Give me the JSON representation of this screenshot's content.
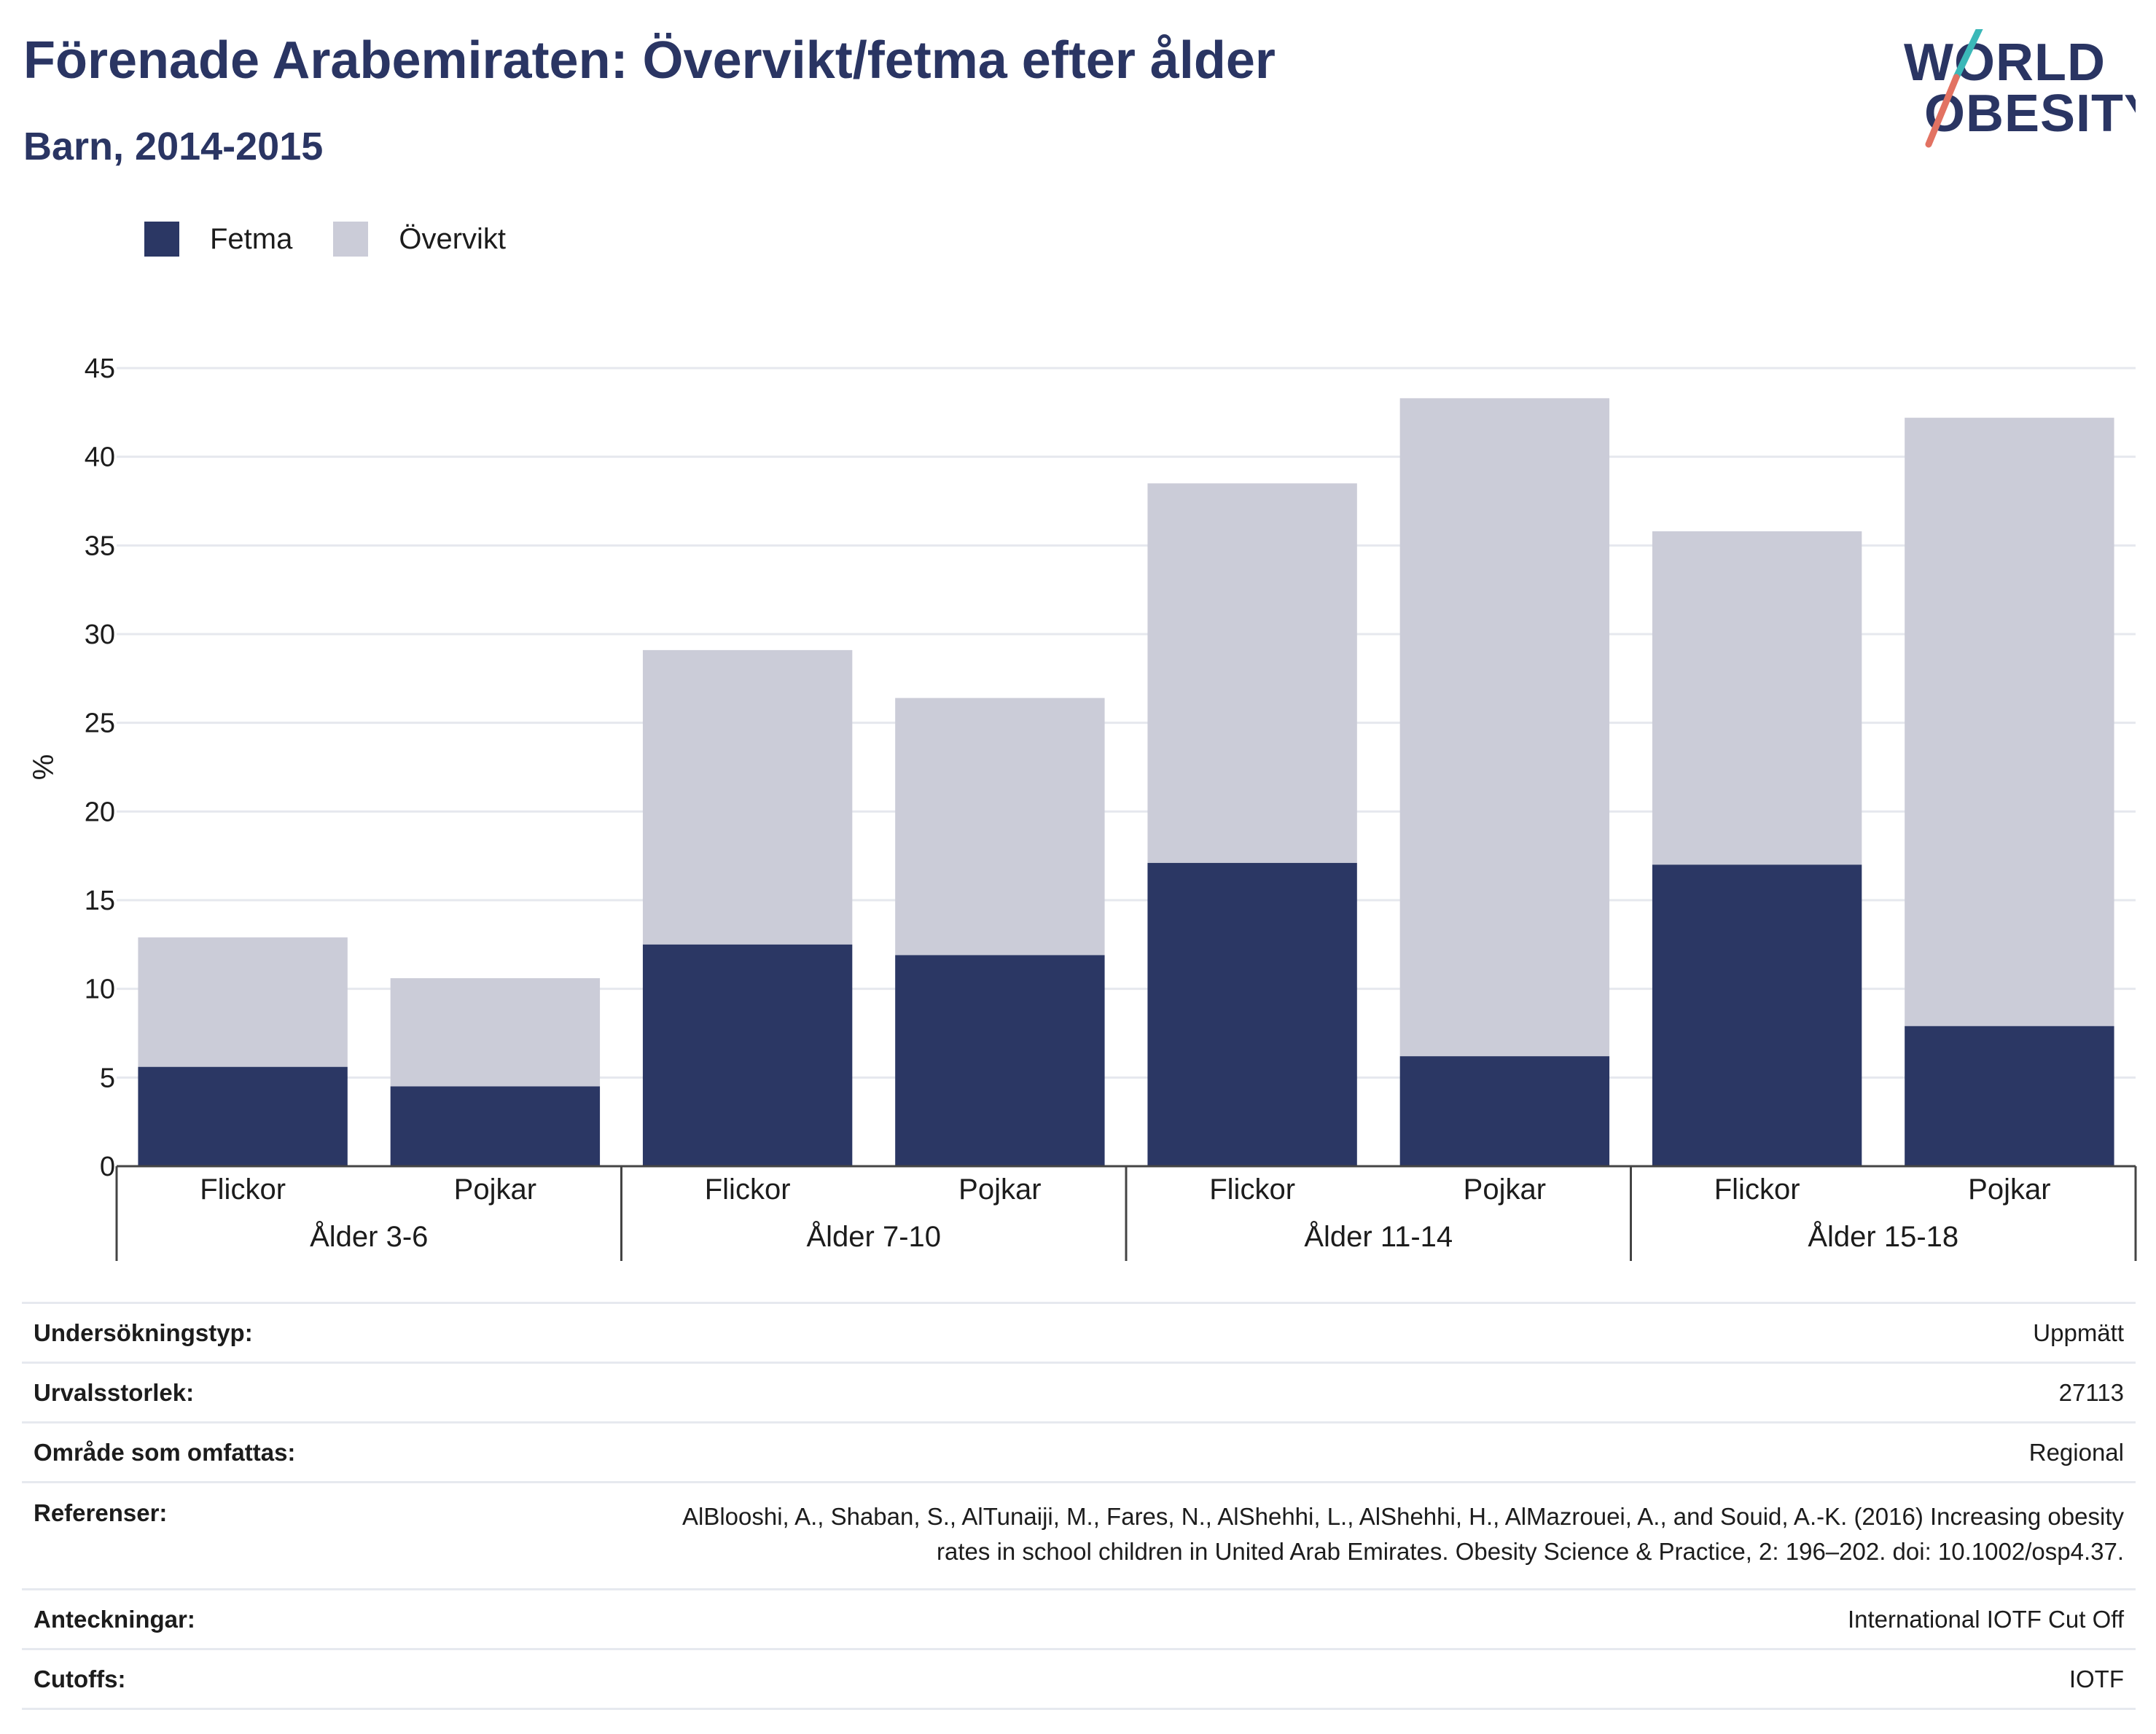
{
  "header": {
    "title": "Förenade Arabemiraten: Övervikt/fetma efter ålder",
    "subtitle": "Barn, 2014-2015"
  },
  "logo": {
    "line1": "WORLD",
    "line2": "OBESITY",
    "icon": "world-obesity-logo"
  },
  "colors": {
    "fetma": "#2b3764",
    "overvikt": "#cbccd8",
    "grid": "#e6e8ee",
    "axis": "#444444",
    "text": "#1c1c1c",
    "brand": "#2a3563"
  },
  "legend": [
    {
      "label": "Fetma",
      "color": "#2b3764"
    },
    {
      "label": "Övervikt",
      "color": "#cbccd8"
    }
  ],
  "chart_data": {
    "type": "bar",
    "stacked": true,
    "ylabel": "%",
    "ylim": [
      0,
      45
    ],
    "yticks": [
      0,
      5,
      10,
      15,
      20,
      25,
      30,
      35,
      40,
      45
    ],
    "grid": true,
    "legend_position": "top-left",
    "groups": [
      "Ålder 3-6",
      "Ålder 7-10",
      "Ålder 11-14",
      "Ålder 15-18"
    ],
    "categories": [
      "Flickor",
      "Pojkar",
      "Flickor",
      "Pojkar",
      "Flickor",
      "Pojkar",
      "Flickor",
      "Pojkar"
    ],
    "series": [
      {
        "name": "Fetma",
        "values": [
          5.6,
          4.5,
          12.5,
          11.9,
          17.1,
          6.2,
          17.0,
          7.9
        ]
      },
      {
        "name": "Övervikt",
        "values": [
          7.3,
          6.1,
          16.6,
          14.5,
          21.4,
          37.1,
          18.8,
          34.3
        ]
      }
    ]
  },
  "info": [
    {
      "label": "Undersökningstyp:",
      "value": "Uppmätt"
    },
    {
      "label": "Urvalsstorlek:",
      "value": "27113"
    },
    {
      "label": "Område som omfattas:",
      "value": "Regional"
    },
    {
      "label": "Referenser:",
      "value_line1": "AlBlooshi, A., Shaban, S., AlTunaiji, M., Fares, N., AlShehhi, L., AlShehhi, H., AlMazrouei, A., and Souid, A.-K. (2016) Increasing obesity",
      "value_line2": "rates in school children in United Arab Emirates. Obesity Science & Practice, 2: 196–202. doi: 10.1002/osp4.37."
    },
    {
      "label": "Anteckningar:",
      "value": "International IOTF Cut Off"
    },
    {
      "label": "Cutoffs:",
      "value": "IOTF"
    }
  ]
}
